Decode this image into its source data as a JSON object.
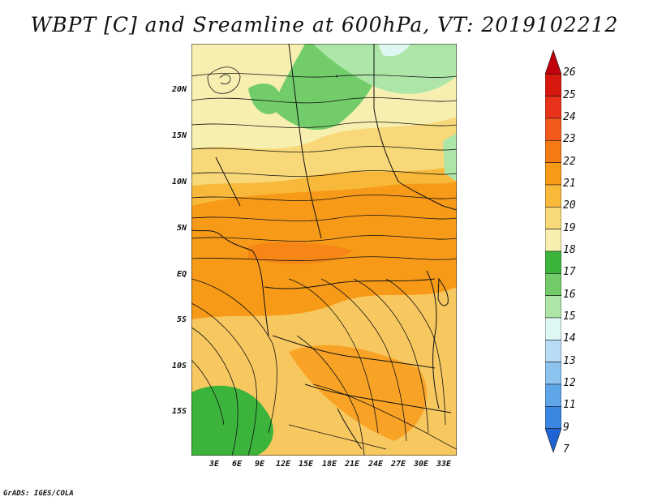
{
  "title": "WBPT [C] and Sreamline at 600hPa, VT: 2019102212",
  "credit": "GrADS: IGES/COLA",
  "latitude_labels": [
    "20N",
    "15N",
    "10N",
    "5N",
    "EQ",
    "5S",
    "10S",
    "15S"
  ],
  "longitude_labels": [
    "3E",
    "6E",
    "9E",
    "12E",
    "15E",
    "18E",
    "21E",
    "24E",
    "27E",
    "30E",
    "33E"
  ],
  "colorbar": {
    "labels": [
      "26",
      "25",
      "24",
      "23",
      "22",
      "21",
      "20",
      "19",
      "18",
      "17",
      "16",
      "15",
      "14",
      "13",
      "12",
      "11",
      "9",
      "7"
    ],
    "colors": [
      "#c0000a",
      "#d6180e",
      "#e8331a",
      "#f25a1c",
      "#f57a14",
      "#f79a18",
      "#f8b93a",
      "#f8d878",
      "#f7efb0",
      "#3cb43c",
      "#72cc6a",
      "#aee6a8",
      "#dff7f2",
      "#b8dcf5",
      "#8cc3ef",
      "#5fa6e8",
      "#3a86e0",
      "#1f64d2"
    ]
  },
  "map": {
    "fields": "wet-bulb potential temperature shading with streamlines",
    "region": "Central Africa, 0E-35E, 20S-24N"
  }
}
